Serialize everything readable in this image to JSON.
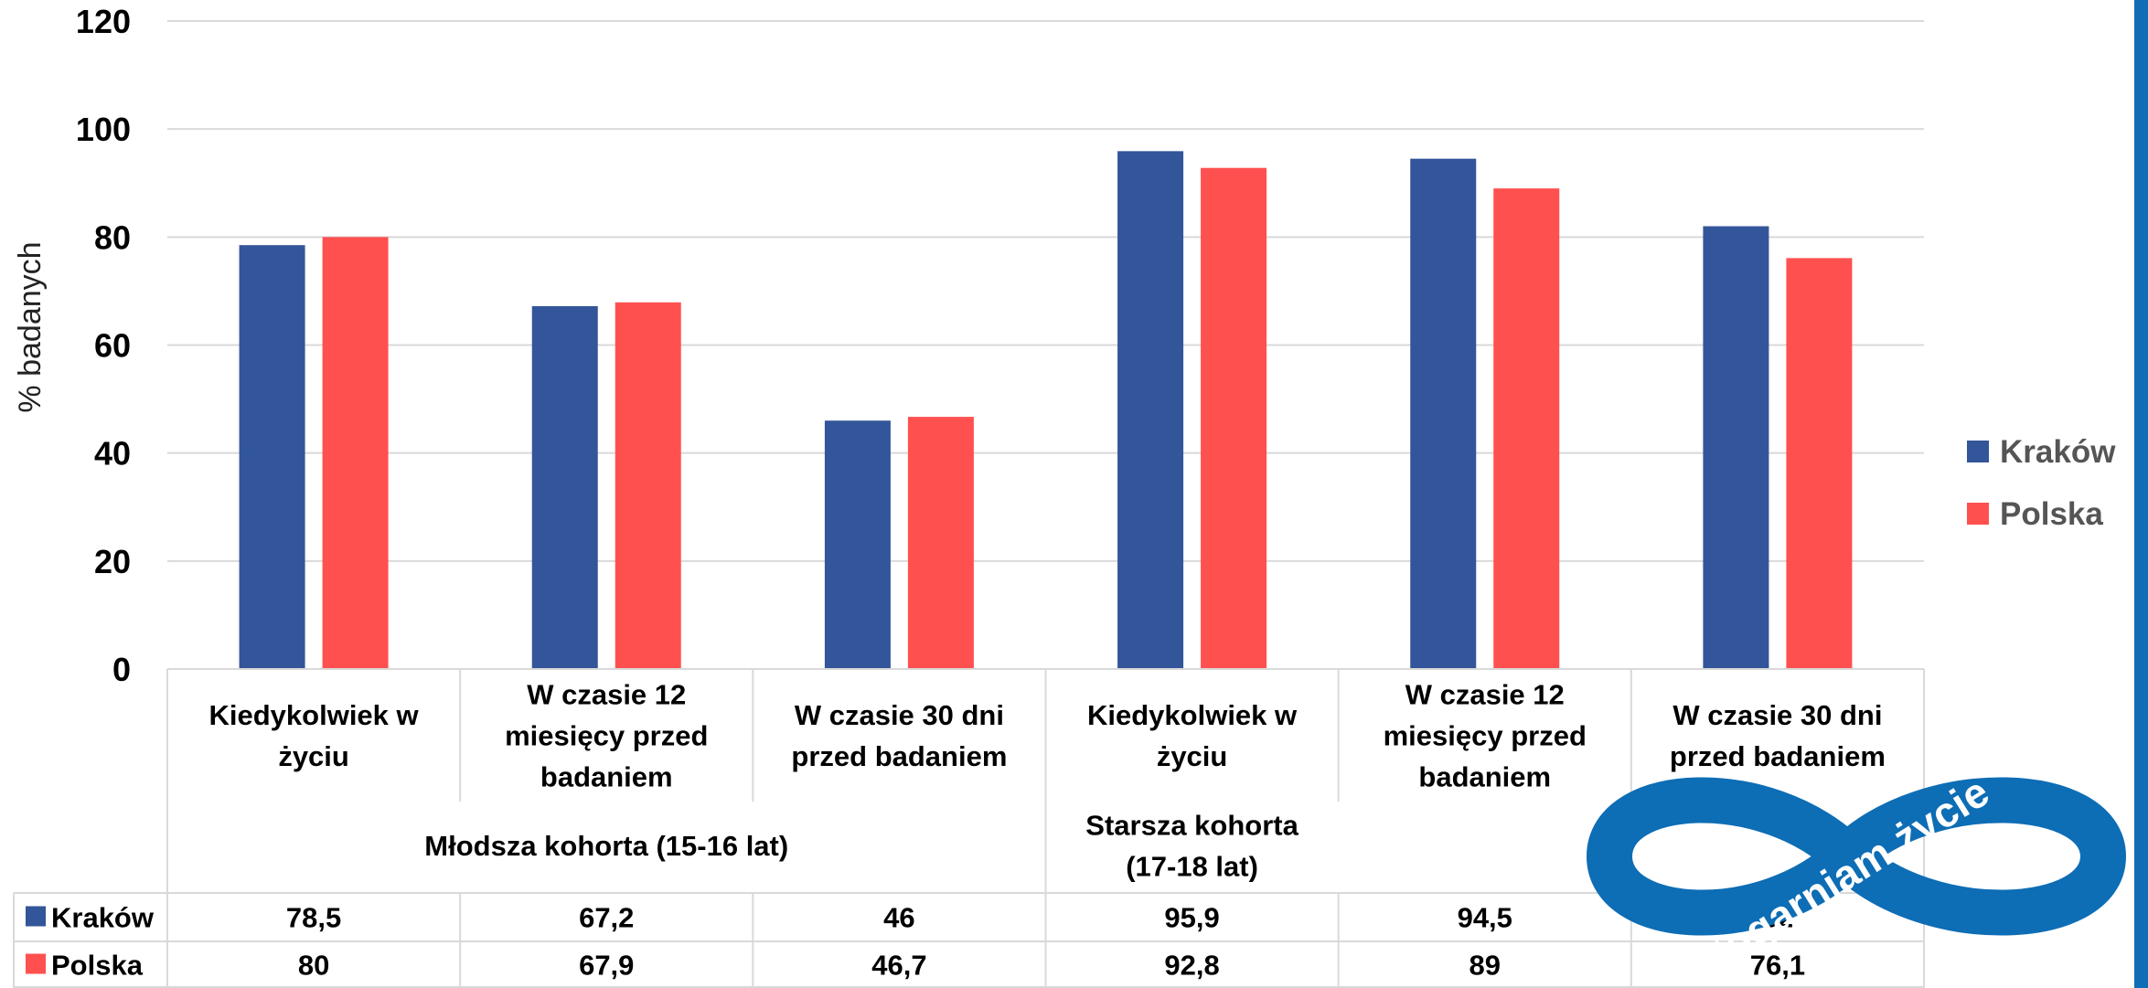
{
  "chart_data": {
    "type": "bar",
    "ylabel": "% badanych",
    "ylim": [
      0,
      120
    ],
    "yticks": [
      "0",
      "20",
      "40",
      "60",
      "80",
      "100",
      "120"
    ],
    "grid": true,
    "legend_position": "right",
    "categories": [
      "Kiedykolwiek w życiu",
      "W czasie 12 miesięcy przed badaniem",
      "W czasie 30 dni przed badaniem",
      "Kiedykolwiek w życiu",
      "W czasie 12 miesięcy przed badaniem",
      "W czasie 30 dni przed badaniem"
    ],
    "category_lines": [
      [
        "Kiedykolwiek w",
        "życiu"
      ],
      [
        "W czasie 12",
        "miesięcy przed",
        "badaniem"
      ],
      [
        "W czasie 30 dni",
        "przed badaniem"
      ],
      [
        "Kiedykolwiek w",
        "życiu"
      ],
      [
        "W czasie 12",
        "miesięcy przed",
        "badaniem"
      ],
      [
        "W czasie 30 dni",
        "przed badaniem"
      ]
    ],
    "groups": [
      {
        "label": "Młodsza kohorta (15-16 lat)",
        "lines": [
          "Młodsza kohorta (15-16 lat)"
        ]
      },
      {
        "label": "Starsza kohorta (17-18 lat)",
        "lines": [
          "Starsza kohorta",
          "(17-18 lat)"
        ]
      }
    ],
    "series": [
      {
        "name": "Kraków",
        "color": "#335599",
        "values": [
          78.5,
          67.2,
          46,
          95.9,
          94.5,
          82
        ],
        "table_values": [
          "78,5",
          "67,2",
          "46",
          "95,9",
          "94,5",
          "82"
        ]
      },
      {
        "name": "Polska",
        "color": "#ff5050",
        "values": [
          80,
          67.9,
          46.7,
          92.8,
          89,
          76.1
        ],
        "table_values": [
          "80",
          "67,9",
          "46,7",
          "92,8",
          "89",
          "76,1"
        ]
      }
    ]
  },
  "watermark": {
    "text": "#ogarniam życie",
    "color": "#0d6db5",
    "kind": "logo"
  },
  "accent_bar_color": "#0d6db5"
}
